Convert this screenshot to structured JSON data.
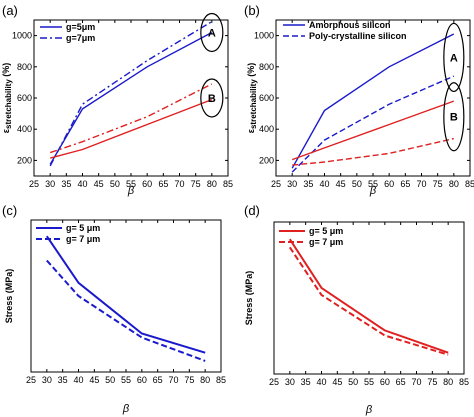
{
  "chart_data": [
    {
      "type": "line",
      "panel": "(a)",
      "xlabel": "β",
      "ylabel": "εstretchability (%)",
      "ylabel_main": "ε",
      "ylabel_sub": "stretchability",
      "ylabel_suffix": " (%)",
      "xlim": [
        25,
        85
      ],
      "ylim": [
        100,
        1100
      ],
      "xticks": [
        25,
        30,
        35,
        40,
        45,
        50,
        55,
        60,
        65,
        70,
        75,
        80,
        85
      ],
      "yticks": [
        200,
        400,
        600,
        800,
        1000
      ],
      "legend": "top-left",
      "series": [
        {
          "name": "g=5μm",
          "color": "#1a1acc",
          "dash": "solid",
          "x": [
            30,
            40,
            60,
            80
          ],
          "y": [
            175,
            530,
            800,
            1020
          ]
        },
        {
          "name": "g=7μm",
          "color": "#1a1acc",
          "dash": "dashdot",
          "x": [
            30,
            40,
            60,
            80
          ],
          "y": [
            165,
            560,
            840,
            1090
          ]
        },
        {
          "name": "",
          "color": "#e02020",
          "dash": "solid",
          "x": [
            30,
            40,
            60,
            80
          ],
          "y": [
            215,
            270,
            430,
            590
          ]
        },
        {
          "name": "",
          "color": "#e02020",
          "dash": "dashdot",
          "x": [
            30,
            40,
            60,
            80
          ],
          "y": [
            250,
            320,
            480,
            690
          ]
        }
      ],
      "annotations": [
        {
          "text": "A",
          "x": 80,
          "y": 1020
        },
        {
          "text": "B",
          "x": 80,
          "y": 600
        }
      ]
    },
    {
      "type": "line",
      "panel": "(b)",
      "xlabel": "β",
      "ylabel": "εstretchability (%)",
      "ylabel_main": "ε",
      "ylabel_sub": "stretchability",
      "ylabel_suffix": " (%)",
      "xlim": [
        25,
        85
      ],
      "ylim": [
        100,
        1100
      ],
      "xticks": [
        25,
        30,
        35,
        40,
        45,
        50,
        55,
        60,
        65,
        70,
        75,
        80,
        85
      ],
      "yticks": [
        200,
        400,
        600,
        800,
        1000
      ],
      "legend": "top-left",
      "series": [
        {
          "name": "Amorphous silicon",
          "color": "#1a1acc",
          "dash": "solid",
          "x": [
            30,
            40,
            60,
            80
          ],
          "y": [
            150,
            520,
            800,
            1010
          ]
        },
        {
          "name": "Poly-crystalline silicon",
          "color": "#1a1acc",
          "dash": "dashed",
          "x": [
            30,
            40,
            60,
            80
          ],
          "y": [
            125,
            330,
            560,
            740
          ]
        },
        {
          "name": "",
          "color": "#e02020",
          "dash": "solid",
          "x": [
            30,
            40,
            60,
            80
          ],
          "y": [
            205,
            280,
            430,
            580
          ]
        },
        {
          "name": "",
          "color": "#e02020",
          "dash": "dashed",
          "x": [
            30,
            40,
            60,
            80
          ],
          "y": [
            170,
            190,
            245,
            340
          ]
        }
      ],
      "annotations": [
        {
          "text": "A",
          "x": 80,
          "y": 860
        },
        {
          "text": "B",
          "x": 80,
          "y": 480
        }
      ]
    },
    {
      "type": "line",
      "panel": "(c)",
      "xlabel": "β",
      "ylabel": "Stress (MPa)",
      "xlim": [
        25,
        85
      ],
      "ylim": [
        150,
        900
      ],
      "xticks": [
        25,
        30,
        35,
        40,
        45,
        50,
        55,
        60,
        65,
        70,
        75,
        80,
        85
      ],
      "yticks": [],
      "legend": "top-left",
      "series": [
        {
          "name": "g= 5 μm",
          "color": "#1a1acc",
          "dash": "solid",
          "x": [
            30,
            40,
            60,
            80
          ],
          "y": [
            820,
            590,
            340,
            245
          ]
        },
        {
          "name": "g= 7 μm",
          "color": "#1a1acc",
          "dash": "dashed",
          "x": [
            30,
            40,
            60,
            80
          ],
          "y": [
            700,
            525,
            320,
            205
          ]
        }
      ]
    },
    {
      "type": "line",
      "panel": "(d)",
      "xlabel": "β",
      "ylabel": "Stress (MPa)",
      "xlim": [
        25,
        85
      ],
      "ylim": [
        150,
        900
      ],
      "xticks": [
        25,
        30,
        35,
        40,
        45,
        50,
        55,
        60,
        65,
        70,
        75,
        80,
        85
      ],
      "yticks": [],
      "legend": "top-left",
      "series": [
        {
          "name": "g= 5 μm",
          "color": "#e02020",
          "dash": "solid",
          "x": [
            30,
            40,
            60,
            80
          ],
          "y": [
            815,
            575,
            365,
            255
          ]
        },
        {
          "name": "g= 7 μm",
          "color": "#e02020",
          "dash": "dashed",
          "x": [
            30,
            40,
            60,
            80
          ],
          "y": [
            775,
            540,
            340,
            245
          ]
        }
      ]
    }
  ]
}
